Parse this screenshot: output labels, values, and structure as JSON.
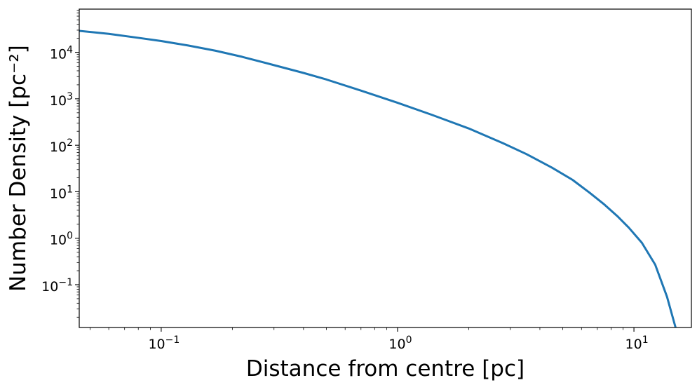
{
  "chart_data": {
    "type": "line",
    "title": "",
    "xlabel": "Distance from centre [pc]",
    "ylabel": "Number Density [pc⁻²]",
    "xscale": "log",
    "yscale": "log",
    "xlim": [
      0.045,
      17.5
    ],
    "ylim": [
      0.012,
      85000
    ],
    "grid": false,
    "x_ticks": [
      {
        "value": 0.1,
        "base": "10",
        "exp": "−1"
      },
      {
        "value": 1,
        "base": "10",
        "exp": "0"
      },
      {
        "value": 10,
        "base": "10",
        "exp": "1"
      }
    ],
    "y_ticks": [
      {
        "value": 0.1,
        "base": "10",
        "exp": "−1"
      },
      {
        "value": 1,
        "base": "10",
        "exp": "0"
      },
      {
        "value": 10,
        "base": "10",
        "exp": "1"
      },
      {
        "value": 100,
        "base": "10",
        "exp": "2"
      },
      {
        "value": 1000,
        "base": "10",
        "exp": "3"
      },
      {
        "value": 10000,
        "base": "10",
        "exp": "4"
      }
    ],
    "series": [
      {
        "color": "#1f77b4",
        "x": [
          0.045,
          0.06,
          0.08,
          0.1,
          0.13,
          0.17,
          0.22,
          0.3,
          0.4,
          0.5,
          0.7,
          1.0,
          1.4,
          2.0,
          2.8,
          3.5,
          4.5,
          5.5,
          6.5,
          7.5,
          8.5,
          9.5,
          10.8,
          12.3,
          13.8,
          15.0
        ],
        "y": [
          29000,
          25000,
          20500,
          17500,
          14000,
          10800,
          8000,
          5300,
          3600,
          2600,
          1500,
          820,
          450,
          230,
          110,
          65,
          33,
          18,
          9.5,
          5.3,
          3.0,
          1.7,
          0.8,
          0.27,
          0.055,
          0.012
        ]
      }
    ]
  }
}
